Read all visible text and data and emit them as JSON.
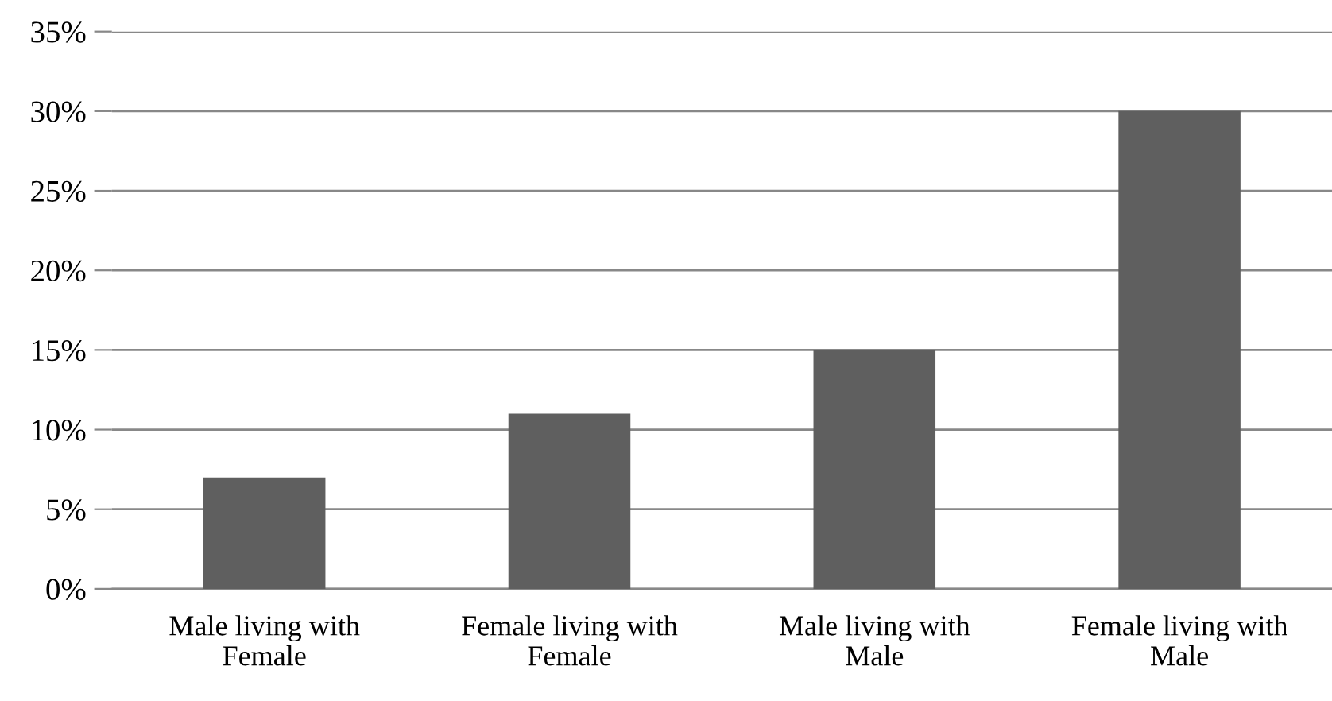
{
  "chart_data": {
    "type": "bar",
    "categories": [
      "Male living with\nFemale",
      "Female living with\nFemale",
      "Male living with\nMale",
      "Female living with\nMale"
    ],
    "values": [
      7,
      11,
      15,
      30
    ],
    "color": "#5f5f5f",
    "ylim": [
      0,
      35
    ],
    "yticks": [
      {
        "value": 0,
        "label": "0%"
      },
      {
        "value": 5,
        "label": "5%"
      },
      {
        "value": 10,
        "label": "10%"
      },
      {
        "value": 15,
        "label": "15%"
      },
      {
        "value": 20,
        "label": "20%"
      },
      {
        "value": 25,
        "label": "25%"
      },
      {
        "value": 30,
        "label": "30%"
      },
      {
        "value": 35,
        "label": "35%"
      }
    ],
    "grid": "y",
    "legend": false
  }
}
